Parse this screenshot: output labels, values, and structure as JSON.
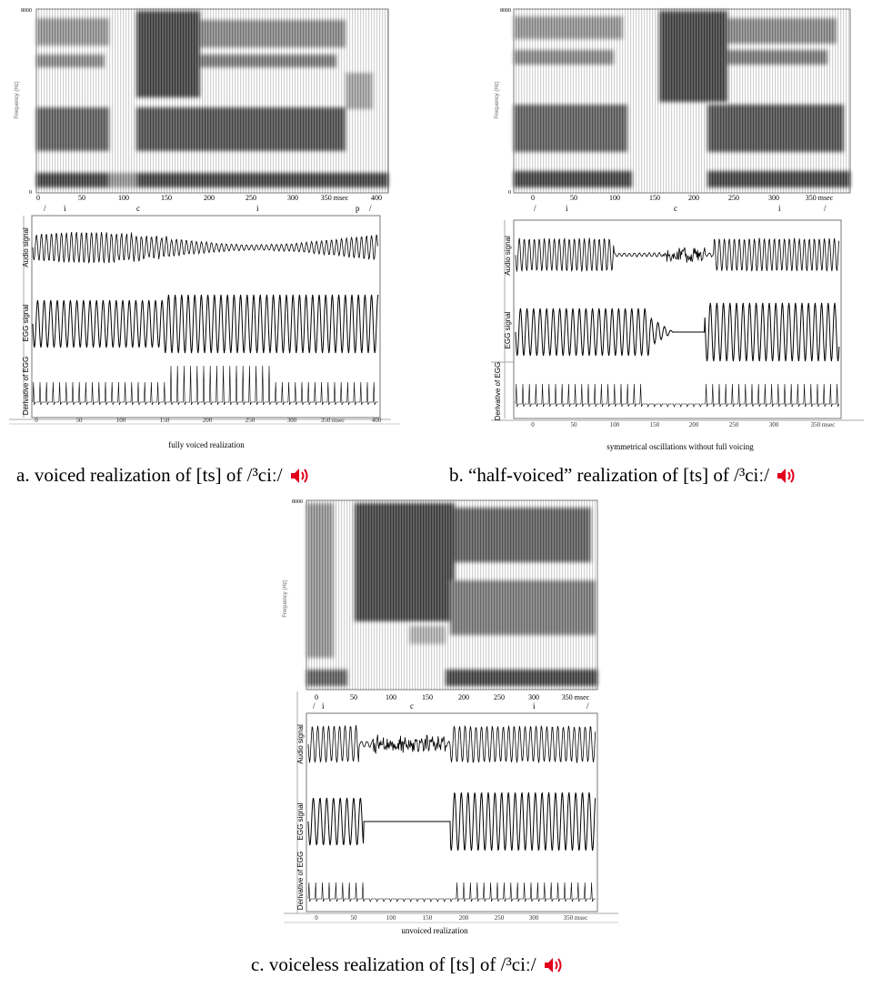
{
  "figures": [
    {
      "id": "a",
      "freq_top": "8000",
      "freq_bottom": "0",
      "freq_label": "Frequency (Hz)",
      "time_ticks": [
        "0",
        "50",
        "100",
        "150",
        "200",
        "250",
        "300",
        "350 msec",
        "400"
      ],
      "bottom_ticks": [
        "0",
        "50",
        "100",
        "150",
        "200",
        "250",
        "300",
        "350 msec",
        "400"
      ],
      "segments": [
        "/",
        "i",
        "c",
        "i",
        "p",
        "/"
      ],
      "trace_labels": [
        "Audio signal",
        "EGG signal",
        "Derivative of EGG"
      ],
      "subcaption": "fully voiced realization",
      "caption": "a. voiced realization of [ts] of /³ciː/"
    },
    {
      "id": "b",
      "freq_top": "8000",
      "freq_bottom": "0",
      "freq_label": "Frequency (Hz)",
      "time_ticks": [
        "0",
        "50",
        "100",
        "150",
        "200",
        "250",
        "300",
        "350 msec"
      ],
      "bottom_ticks": [
        "0",
        "50",
        "100",
        "150",
        "200",
        "250",
        "300",
        "350 msec"
      ],
      "segments": [
        "/",
        "i",
        "c",
        "i",
        "/"
      ],
      "trace_labels": [
        "Audio signal",
        "EGG signal",
        "Derivative of EGG"
      ],
      "subcaption": "symmetrical oscillations without full voicing",
      "caption": "b. “half-voiced” realization of [ts] of /³ciː/"
    },
    {
      "id": "c",
      "freq_top": "8000",
      "freq_label": "Frequency (Hz)",
      "time_ticks": [
        "0",
        "50",
        "100",
        "150",
        "200",
        "250",
        "300",
        "350 msec"
      ],
      "bottom_ticks": [
        "0",
        "50",
        "100",
        "150",
        "200",
        "250",
        "300",
        "350 msec"
      ],
      "segments": [
        "/",
        "i",
        "c",
        "i",
        "/"
      ],
      "trace_labels": [
        "Audio signal",
        "EGG signal",
        "Derivative of EGG"
      ],
      "subcaption": "unvoiced realization",
      "caption": "c. voiceless realization of [ts] of /³ciː/"
    }
  ],
  "colors": {
    "speaker": "#e0001b",
    "ink": "#000000",
    "frame": "#555555"
  },
  "icons": {
    "audio": "speaker-icon"
  }
}
